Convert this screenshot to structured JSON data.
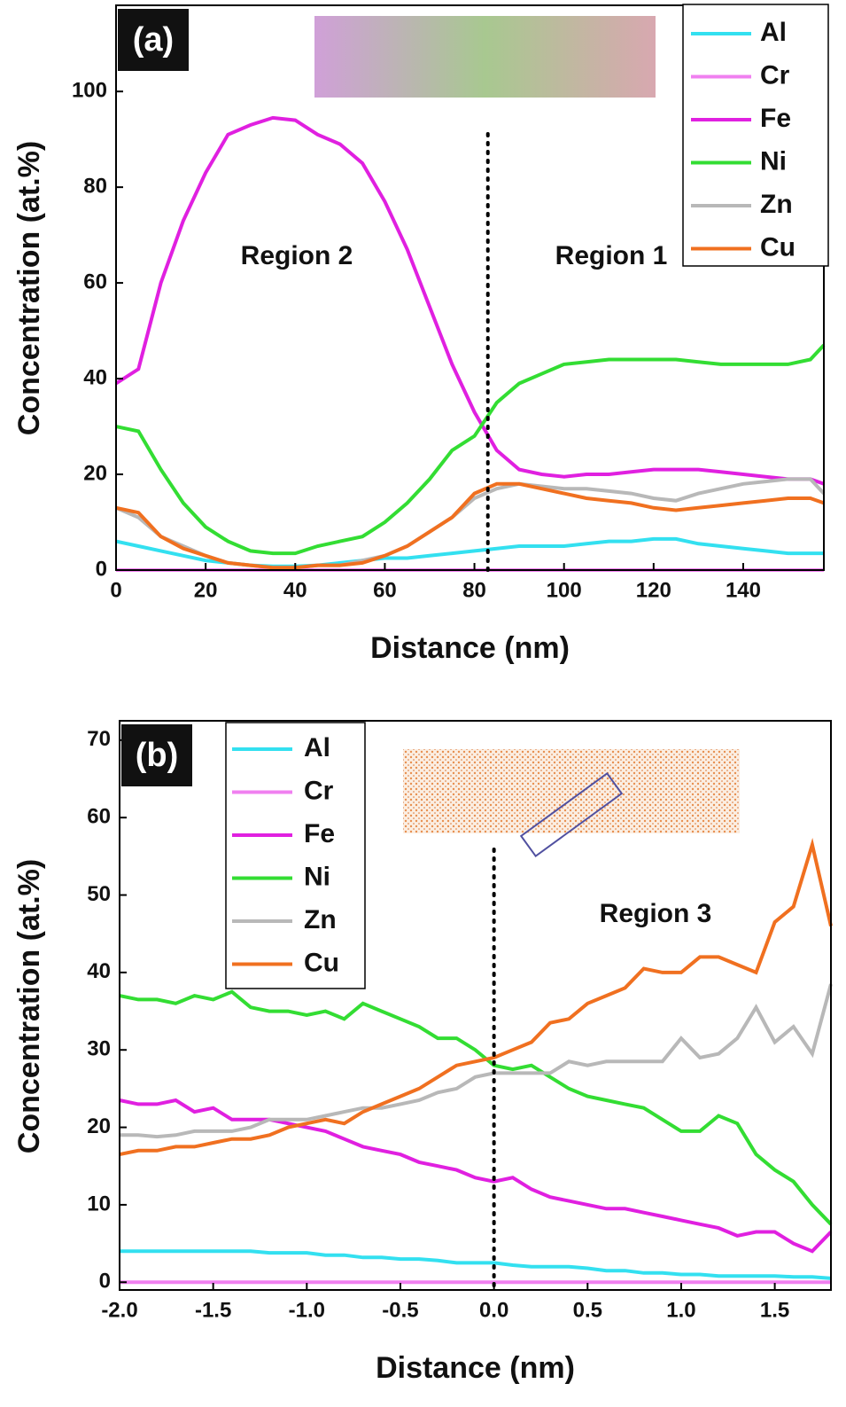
{
  "chart_data": [
    {
      "type": "line",
      "panel_label": "(a)",
      "xlabel": "Distance (nm)",
      "ylabel": "Concentration (at.%)",
      "annotations": [
        "Region 2",
        "Region 1"
      ],
      "divider_x": 83,
      "legend": "upper right",
      "xlim": [
        0,
        158
      ],
      "ylim": [
        0,
        118
      ],
      "xticks": [
        0,
        20,
        40,
        60,
        80,
        100,
        120,
        140
      ],
      "yticks": [
        0,
        20,
        40,
        60,
        80,
        100
      ],
      "x": [
        0,
        5,
        10,
        15,
        20,
        25,
        30,
        35,
        40,
        45,
        50,
        55,
        60,
        65,
        70,
        75,
        80,
        85,
        90,
        95,
        100,
        105,
        110,
        115,
        120,
        125,
        130,
        135,
        140,
        145,
        150,
        155,
        158
      ],
      "series": [
        {
          "name": "Al",
          "color": "#33e0f0",
          "values": [
            6,
            5,
            4,
            3,
            2,
            1.5,
            1,
            0.8,
            0.8,
            1,
            1.5,
            2,
            2.5,
            2.5,
            3,
            3.5,
            4,
            4.5,
            5,
            5,
            5,
            5.5,
            6,
            6,
            6.5,
            6.5,
            5.5,
            5,
            4.5,
            4,
            3.5,
            3.5,
            3.5
          ]
        },
        {
          "name": "Cr",
          "color": "#f080f0",
          "values": [
            0,
            0,
            0,
            0,
            0,
            0,
            0,
            0,
            0,
            0,
            0,
            0,
            0,
            0,
            0,
            0,
            0,
            0,
            0,
            0,
            0,
            0,
            0,
            0,
            0,
            0,
            0,
            0,
            0,
            0,
            0,
            0,
            0
          ]
        },
        {
          "name": "Fe",
          "color": "#e020e0",
          "values": [
            39,
            42,
            60,
            73,
            83,
            91,
            93,
            94.5,
            94,
            91,
            89,
            85,
            77,
            67,
            55,
            43,
            33,
            25,
            21,
            20,
            19.5,
            20,
            20,
            20.5,
            21,
            21,
            21,
            20.5,
            20,
            19.5,
            19,
            19,
            18
          ]
        },
        {
          "name": "Ni",
          "color": "#33dd33",
          "values": [
            30,
            29,
            21,
            14,
            9,
            6,
            4,
            3.5,
            3.5,
            5,
            6,
            7,
            10,
            14,
            19,
            25,
            28,
            35,
            39,
            41,
            43,
            43.5,
            44,
            44,
            44,
            44,
            43.5,
            43,
            43,
            43,
            43,
            44,
            47
          ]
        },
        {
          "name": "Zn",
          "color": "#b8b8b8",
          "values": [
            13,
            11,
            7,
            5,
            3,
            1.5,
            1,
            0.5,
            0.5,
            1,
            1,
            2,
            3,
            5,
            8,
            11,
            15,
            17,
            18,
            17.5,
            17,
            17,
            16.5,
            16,
            15,
            14.5,
            16,
            17,
            18,
            18.5,
            19,
            19,
            16
          ]
        },
        {
          "name": "Cu",
          "color": "#f07020",
          "values": [
            13,
            12,
            7,
            4.5,
            3,
            1.5,
            1,
            0.5,
            0.5,
            1,
            1,
            1.5,
            3,
            5,
            8,
            11,
            16,
            18,
            18,
            17,
            16,
            15,
            14.5,
            14,
            13,
            12.5,
            13,
            13.5,
            14,
            14.5,
            15,
            15,
            14
          ]
        }
      ]
    },
    {
      "type": "line",
      "panel_label": "(b)",
      "xlabel": "Distance (nm)",
      "ylabel": "Concentration (at.%)",
      "annotations": [
        "Region 3"
      ],
      "divider_x": 0,
      "legend": "upper left",
      "xlim": [
        -2,
        1.8
      ],
      "ylim": [
        -1,
        72.5
      ],
      "xticks": [
        {
          "value": -2,
          "label": "-2.0"
        },
        -1.5,
        {
          "value": -1,
          "label": "-1.0"
        },
        -0.5,
        {
          "value": 0,
          "label": "0.0"
        },
        0.5,
        {
          "value": 1,
          "label": "1.0"
        },
        1.5
      ],
      "yticks": [
        0,
        10,
        20,
        30,
        40,
        50,
        60,
        70
      ],
      "x": [
        -2,
        -1.9,
        -1.8,
        -1.7,
        -1.6,
        -1.5,
        -1.4,
        -1.3,
        -1.2,
        -1.1,
        -1,
        -0.9,
        -0.8,
        -0.7,
        -0.6,
        -0.5,
        -0.4,
        -0.3,
        -0.2,
        -0.1,
        0,
        0.1,
        0.2,
        0.3,
        0.4,
        0.5,
        0.6,
        0.7,
        0.8,
        0.9,
        1,
        1.1,
        1.2,
        1.3,
        1.4,
        1.5,
        1.6,
        1.7,
        1.8
      ],
      "series": [
        {
          "name": "Al",
          "color": "#33e0f0",
          "values": [
            4,
            4,
            4,
            4,
            4,
            4,
            4,
            4,
            3.8,
            3.8,
            3.8,
            3.5,
            3.5,
            3.2,
            3.2,
            3,
            3,
            2.8,
            2.5,
            2.5,
            2.5,
            2.2,
            2,
            2,
            2,
            1.8,
            1.5,
            1.5,
            1.2,
            1.2,
            1,
            1,
            0.8,
            0.8,
            0.8,
            0.8,
            0.7,
            0.7,
            0.5
          ]
        },
        {
          "name": "Cr",
          "color": "#f080f0",
          "values": [
            0,
            0,
            0,
            0,
            0,
            0,
            0,
            0,
            0,
            0,
            0,
            0,
            0,
            0,
            0,
            0,
            0,
            0,
            0,
            0,
            0,
            0,
            0,
            0,
            0,
            0,
            0,
            0,
            0,
            0,
            0,
            0,
            0,
            0,
            0,
            0,
            0,
            0,
            0
          ]
        },
        {
          "name": "Fe",
          "color": "#e020e0",
          "values": [
            23.5,
            23,
            23,
            23.5,
            22,
            22.5,
            21,
            21,
            21,
            20.5,
            20,
            19.5,
            18.5,
            17.5,
            17,
            16.5,
            15.5,
            15,
            14.5,
            13.5,
            13,
            13.5,
            12,
            11,
            10.5,
            10,
            9.5,
            9.5,
            9,
            8.5,
            8,
            7.5,
            7,
            6,
            6.5,
            6.5,
            5,
            4,
            6.5
          ]
        },
        {
          "name": "Ni",
          "color": "#33dd33",
          "values": [
            37,
            36.5,
            36.5,
            36,
            37,
            36.5,
            37.5,
            35.5,
            35,
            35,
            34.5,
            35,
            34,
            36,
            35,
            34,
            33,
            31.5,
            31.5,
            30,
            28,
            27.5,
            28,
            26.5,
            25,
            24,
            23.5,
            23,
            22.5,
            21,
            19.5,
            19.5,
            21.5,
            20.5,
            16.5,
            14.5,
            13,
            10,
            7.5
          ]
        },
        {
          "name": "Zn",
          "color": "#b8b8b8",
          "values": [
            19,
            19,
            18.8,
            19,
            19.5,
            19.5,
            19.5,
            20,
            21,
            21,
            21,
            21.5,
            22,
            22.5,
            22.5,
            23,
            23.5,
            24.5,
            25,
            26.5,
            27,
            27,
            27,
            27,
            28.5,
            28,
            28.5,
            28.5,
            28.5,
            28.5,
            31.5,
            29,
            29.5,
            31.5,
            35.5,
            31,
            33,
            29.5,
            38.5
          ]
        },
        {
          "name": "Cu",
          "color": "#f07020",
          "values": [
            16.5,
            17,
            17,
            17.5,
            17.5,
            18,
            18.5,
            18.5,
            19,
            20,
            20.5,
            21,
            20.5,
            22,
            23,
            24,
            25,
            26.5,
            28,
            28.5,
            29,
            30,
            31,
            33.5,
            34,
            36,
            37,
            38,
            40.5,
            40,
            40,
            42,
            42,
            41,
            40,
            46.5,
            48.5,
            56.5,
            46
          ]
        }
      ]
    }
  ]
}
